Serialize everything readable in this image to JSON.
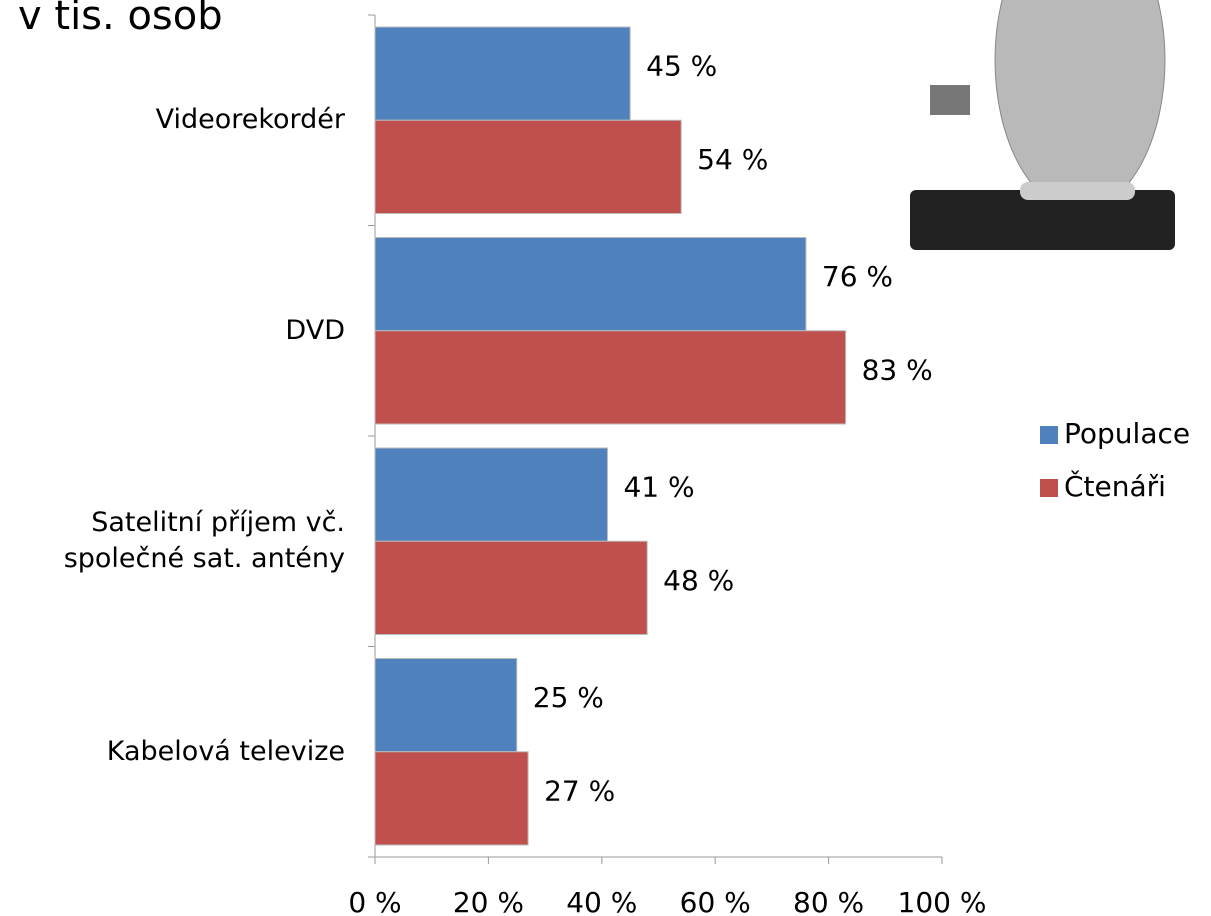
{
  "chart_data": {
    "type": "bar",
    "orientation": "horizontal",
    "title": "v tis. osob",
    "categories": [
      "Videorekordér",
      "DVD",
      "Satelitní příjem vč. společné sat. antény",
      "Kabelová televize"
    ],
    "series": [
      {
        "name": "Populace",
        "color": "#4f81bd",
        "values": [
          45,
          76,
          41,
          25
        ],
        "value_labels": [
          "45 %",
          "76 %",
          "41 %",
          "25 %"
        ]
      },
      {
        "name": "Čtenáři",
        "color": "#c0504d",
        "values": [
          54,
          83,
          48,
          27
        ],
        "value_labels": [
          "54 %",
          "83 %",
          "48 %",
          "27 %"
        ]
      }
    ],
    "xlim": [
      0,
      100
    ],
    "xticks": [
      {
        "value": 0,
        "label": "0 %"
      },
      {
        "value": 20,
        "label": "20 %"
      },
      {
        "value": 40,
        "label": "40 %"
      },
      {
        "value": 60,
        "label": "60 %"
      },
      {
        "value": 80,
        "label": "80 %"
      },
      {
        "value": 100,
        "label": "100 %"
      }
    ],
    "legend": "right"
  }
}
